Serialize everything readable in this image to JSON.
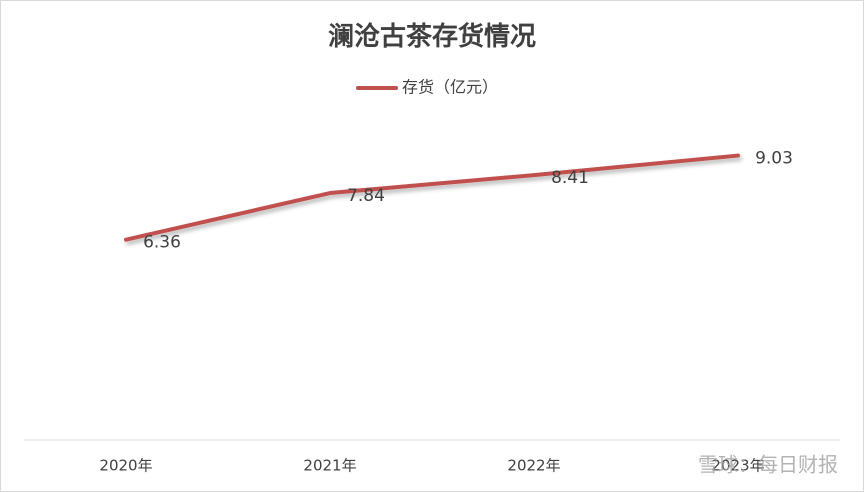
{
  "chart_data": {
    "type": "line",
    "title": "澜沧古茶存货情况",
    "categories": [
      "2020年",
      "2021年",
      "2022年",
      "2023年"
    ],
    "series": [
      {
        "name": "存货（亿元）",
        "color": "#c0504d",
        "values": [
          6.36,
          7.84,
          8.41,
          9.03
        ]
      }
    ],
    "ylim": [
      0,
      10
    ],
    "legend": "top"
  },
  "watermark": "雪球：每日财报"
}
